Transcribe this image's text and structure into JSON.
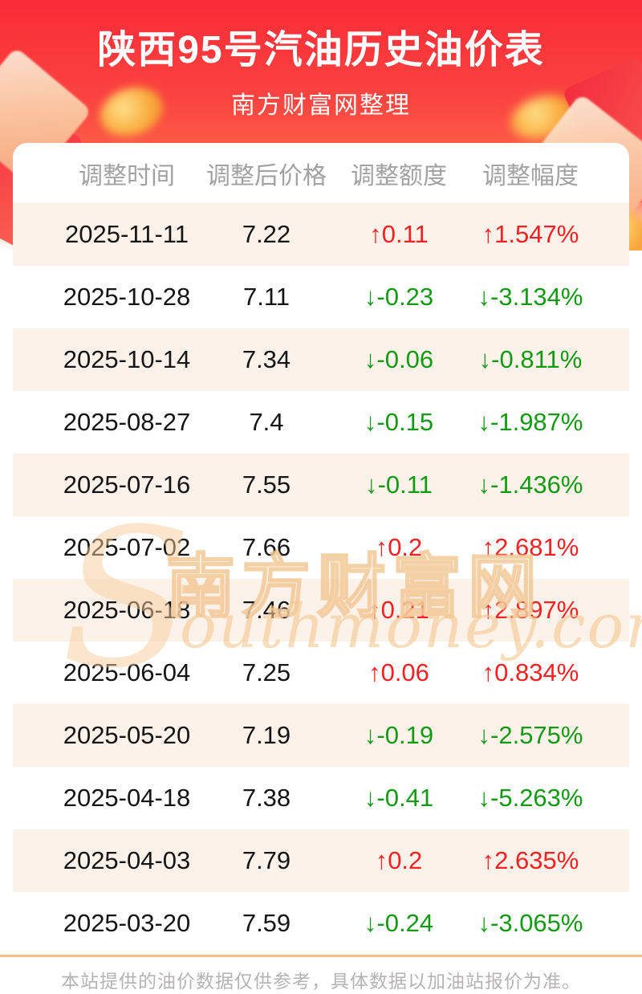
{
  "banner": {
    "title": "陕西95号汽油历史油价表",
    "subtitle": "南方财富网整理"
  },
  "table": {
    "columns": [
      "调整时间",
      "调整后价格",
      "调整额度",
      "调整幅度"
    ],
    "rows": [
      {
        "date": "2025-11-11",
        "price": "7.22",
        "amount": "↑0.11",
        "rate": "↑1.547%",
        "trend": "up"
      },
      {
        "date": "2025-10-28",
        "price": "7.11",
        "amount": "↓-0.23",
        "rate": "↓-3.134%",
        "trend": "down"
      },
      {
        "date": "2025-10-14",
        "price": "7.34",
        "amount": "↓-0.06",
        "rate": "↓-0.811%",
        "trend": "down"
      },
      {
        "date": "2025-08-27",
        "price": "7.4",
        "amount": "↓-0.15",
        "rate": "↓-1.987%",
        "trend": "down"
      },
      {
        "date": "2025-07-16",
        "price": "7.55",
        "amount": "↓-0.11",
        "rate": "↓-1.436%",
        "trend": "down"
      },
      {
        "date": "2025-07-02",
        "price": "7.66",
        "amount": "↑0.2",
        "rate": "↑2.681%",
        "trend": "up"
      },
      {
        "date": "2025-06-18",
        "price": "7.46",
        "amount": "↑0.21",
        "rate": "↑2.897%",
        "trend": "up"
      },
      {
        "date": "2025-06-04",
        "price": "7.25",
        "amount": "↑0.06",
        "rate": "↑0.834%",
        "trend": "up"
      },
      {
        "date": "2025-05-20",
        "price": "7.19",
        "amount": "↓-0.19",
        "rate": "↓-2.575%",
        "trend": "down"
      },
      {
        "date": "2025-04-18",
        "price": "7.38",
        "amount": "↓-0.41",
        "rate": "↓-5.263%",
        "trend": "down"
      },
      {
        "date": "2025-04-03",
        "price": "7.79",
        "amount": "↑0.2",
        "rate": "↑2.635%",
        "trend": "up"
      },
      {
        "date": "2025-03-20",
        "price": "7.59",
        "amount": "↓-0.24",
        "rate": "↓-3.065%",
        "trend": "down"
      }
    ]
  },
  "watermark": {
    "initial": "S",
    "cjk": "南方财富网",
    "latin": "outhmoney.com"
  },
  "footer": {
    "disclaimer": "本站提供的油价数据仅供参考，具体数据以加油站报价为准。"
  },
  "colors": {
    "up": "#f82020",
    "down": "#129b12",
    "alt": "#fdf2ea",
    "line": "#f6c185",
    "banner": "#f92b37"
  }
}
